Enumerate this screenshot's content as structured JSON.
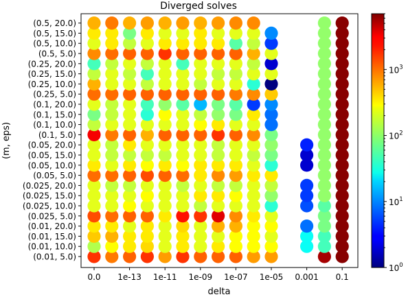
{
  "chart_data": {
    "type": "scatter",
    "title": "Diverged solves",
    "xlabel": "delta",
    "ylabel": "(m, eps)",
    "x_categories": [
      "0.0",
      "1e-14",
      "1e-13",
      "1e-12",
      "1e-11",
      "1e-10",
      "1e-09",
      "1e-08",
      "1e-07",
      "1e-06",
      "1e-05",
      "0.0001",
      "0.001",
      "0.01",
      "0.1"
    ],
    "x_tick_labels": [
      "0.0",
      "1e-13",
      "1e-11",
      "1e-09",
      "1e-07",
      "1e-05",
      "0.001",
      "0.1"
    ],
    "y_categories": [
      "(0.01, 5.0)",
      "(0.01, 10.0)",
      "(0.01, 15.0)",
      "(0.01, 20.0)",
      "(0.025, 5.0)",
      "(0.025, 10.0)",
      "(0.025, 15.0)",
      "(0.025, 20.0)",
      "(0.05, 5.0)",
      "(0.05, 10.0)",
      "(0.05, 15.0)",
      "(0.05, 20.0)",
      "(0.1, 5.0)",
      "(0.1, 10.0)",
      "(0.1, 15.0)",
      "(0.1, 20.0)",
      "(0.25, 5.0)",
      "(0.25, 10.0)",
      "(0.25, 15.0)",
      "(0.25, 20.0)",
      "(0.5, 5.0)",
      "(0.5, 10.0)",
      "(0.5, 15.0)",
      "(0.5, 20.0)"
    ],
    "colorbar": {
      "scale": "log",
      "colormap": "jet",
      "range": [
        1,
        7000
      ],
      "tick_values": [
        1,
        10,
        100,
        1000
      ],
      "tick_labels": [
        "10",
        "10",
        "10",
        "10"
      ],
      "tick_exponents": [
        "0",
        "1",
        "2",
        "3"
      ]
    },
    "rows": [
      [
        1500,
        800,
        1000,
        1500,
        600,
        1500,
        1000,
        1000,
        1000,
        600,
        600,
        null,
        null,
        5000,
        6500
      ],
      [
        130,
        250,
        300,
        350,
        200,
        300,
        200,
        300,
        250,
        250,
        250,
        null,
        30,
        50,
        6500
      ],
      [
        400,
        500,
        300,
        300,
        200,
        300,
        200,
        200,
        250,
        250,
        200,
        null,
        30,
        50,
        6500
      ],
      [
        300,
        300,
        200,
        300,
        200,
        350,
        200,
        500,
        500,
        250,
        250,
        null,
        8,
        80,
        6500
      ],
      [
        1200,
        900,
        1000,
        1000,
        300,
        2000,
        1500,
        3000,
        700,
        300,
        200,
        null,
        null,
        80,
        6500
      ],
      [
        200,
        200,
        250,
        200,
        200,
        200,
        150,
        200,
        200,
        200,
        40,
        null,
        6,
        60,
        6500
      ],
      [
        200,
        200,
        200,
        250,
        200,
        200,
        300,
        300,
        250,
        200,
        100,
        null,
        5,
        100,
        6500
      ],
      [
        200,
        150,
        150,
        200,
        200,
        150,
        200,
        150,
        150,
        200,
        150,
        null,
        5,
        100,
        6500
      ],
      [
        900,
        900,
        1000,
        1200,
        1000,
        900,
        300,
        700,
        600,
        300,
        300,
        null,
        null,
        100,
        6500
      ],
      [
        300,
        200,
        300,
        250,
        300,
        250,
        300,
        300,
        300,
        200,
        40,
        null,
        2,
        100,
        6500
      ],
      [
        200,
        150,
        150,
        150,
        150,
        200,
        200,
        150,
        200,
        150,
        80,
        null,
        2,
        100,
        6500
      ],
      [
        200,
        150,
        300,
        200,
        200,
        200,
        200,
        150,
        200,
        200,
        100,
        null,
        4,
        100,
        6500
      ],
      [
        2500,
        800,
        1000,
        500,
        1000,
        1000,
        1000,
        1500,
        1000,
        700,
        80,
        null,
        null,
        100,
        6500
      ],
      [
        150,
        200,
        200,
        200,
        200,
        200,
        250,
        300,
        200,
        200,
        8,
        null,
        null,
        100,
        6500
      ],
      [
        80,
        150,
        200,
        40,
        250,
        200,
        150,
        100,
        80,
        300,
        8,
        null,
        null,
        100,
        6500
      ],
      [
        200,
        150,
        200,
        50,
        100,
        60,
        15,
        80,
        60,
        5,
        10,
        null,
        null,
        100,
        6500
      ],
      [
        900,
        900,
        1000,
        1000,
        1000,
        1000,
        1000,
        1000,
        800,
        700,
        400,
        null,
        null,
        100,
        6500
      ],
      [
        500,
        200,
        200,
        150,
        200,
        200,
        150,
        200,
        200,
        40,
        1,
        null,
        null,
        100,
        6500
      ],
      [
        150,
        200,
        150,
        50,
        200,
        200,
        200,
        150,
        150,
        200,
        200,
        null,
        null,
        100,
        6500
      ],
      [
        50,
        150,
        200,
        150,
        200,
        50,
        200,
        200,
        200,
        150,
        2,
        null,
        null,
        100,
        6500
      ],
      [
        700,
        900,
        1000,
        1000,
        1500,
        1000,
        1000,
        1000,
        1000,
        500,
        200,
        null,
        null,
        100,
        6500
      ],
      [
        200,
        300,
        150,
        200,
        300,
        300,
        300,
        300,
        60,
        150,
        5,
        null,
        null,
        100,
        6500
      ],
      [
        300,
        300,
        80,
        300,
        200,
        200,
        300,
        200,
        200,
        200,
        10,
        null,
        null,
        100,
        6500
      ],
      [
        500,
        800,
        500,
        600,
        500,
        600,
        500,
        600,
        700,
        700,
        null,
        null,
        null,
        100,
        6500
      ]
    ]
  }
}
